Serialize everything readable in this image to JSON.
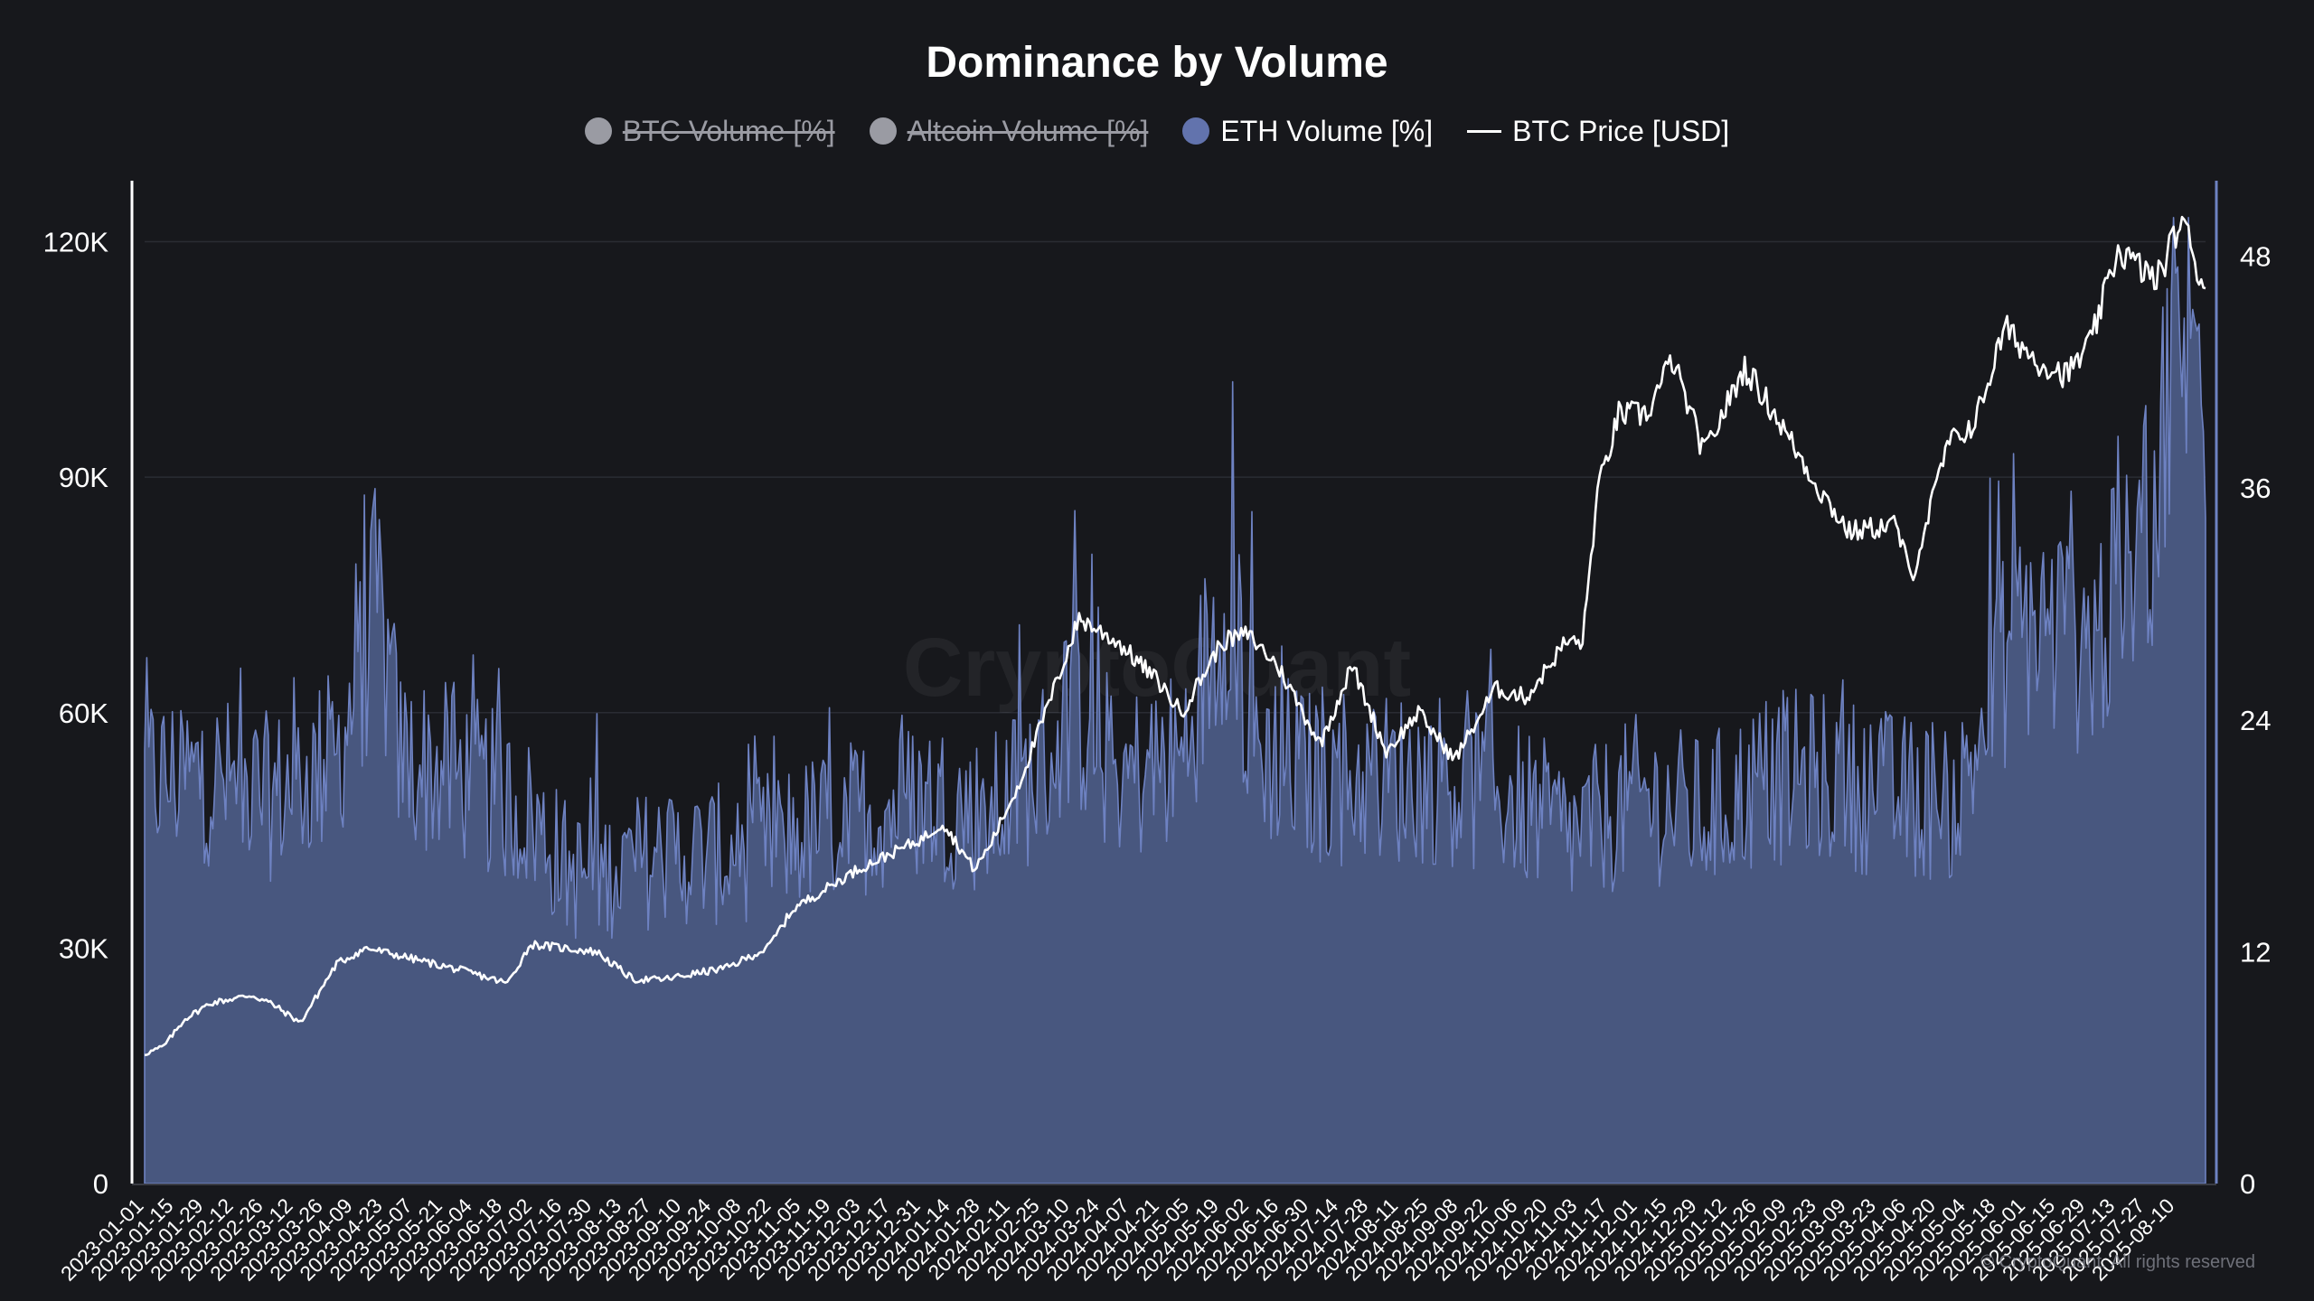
{
  "chart_data": {
    "type": "area",
    "title": "Dominance by Volume",
    "legend": [
      {
        "name": "BTC Volume [%]",
        "color": "#9a9ba3",
        "hidden": true,
        "marker": "dot"
      },
      {
        "name": "Altcoin Volume [%]",
        "color": "#9a9ba3",
        "hidden": true,
        "marker": "dot"
      },
      {
        "name": "ETH Volume [%]",
        "color": "#6273ad",
        "hidden": false,
        "marker": "dot"
      },
      {
        "name": "BTC Price [USD]",
        "color": "#ffffff",
        "hidden": false,
        "marker": "line"
      }
    ],
    "x_start": "2023-01-01",
    "x_end": "2025-08-24",
    "x_tick_labels": [
      "2023-01-01",
      "2023-01-15",
      "2023-01-29",
      "2023-02-12",
      "2023-02-26",
      "2023-03-12",
      "2023-03-26",
      "2023-04-09",
      "2023-04-23",
      "2023-05-07",
      "2023-05-21",
      "2023-06-04",
      "2023-06-18",
      "2023-07-02",
      "2023-07-16",
      "2023-07-30",
      "2023-08-13",
      "2023-08-27",
      "2023-09-10",
      "2023-09-24",
      "2023-10-08",
      "2023-10-22",
      "2023-11-05",
      "2023-11-19",
      "2023-12-03",
      "2023-12-17",
      "2023-12-31",
      "2024-01-14",
      "2024-01-28",
      "2024-02-11",
      "2024-02-25",
      "2024-03-10",
      "2024-03-24",
      "2024-04-07",
      "2024-04-21",
      "2024-05-05",
      "2024-05-19",
      "2024-06-02",
      "2024-06-16",
      "2024-06-30",
      "2024-07-14",
      "2024-07-28",
      "2024-08-11",
      "2024-08-25",
      "2024-09-08",
      "2024-09-22",
      "2024-10-06",
      "2024-10-20",
      "2024-11-03",
      "2024-11-17",
      "2024-12-01",
      "2024-12-15",
      "2024-12-29",
      "2025-01-12",
      "2025-01-26",
      "2025-02-09",
      "2025-02-23",
      "2025-03-09",
      "2025-03-23",
      "2025-04-06",
      "2025-04-20",
      "2025-05-04",
      "2025-05-18",
      "2025-06-01",
      "2025-06-15",
      "2025-06-29",
      "2025-07-13",
      "2025-07-27",
      "2025-08-10"
    ],
    "y_left": {
      "ticks": [
        "0",
        "30K",
        "60K",
        "90K",
        "120K"
      ],
      "values": [
        0,
        30000,
        60000,
        90000,
        120000
      ],
      "range": [
        0,
        128000
      ]
    },
    "y_right": {
      "ticks": [
        "0",
        "12",
        "24",
        "36",
        "48"
      ],
      "values": [
        0,
        12,
        24,
        36,
        48
      ],
      "range": [
        0,
        52
      ]
    },
    "grid": true,
    "eth_volume_pct": {
      "dates": [
        "2023-01-01",
        "2023-02-01",
        "2023-03-01",
        "2023-04-01",
        "2023-04-20",
        "2023-05-01",
        "2023-06-01",
        "2023-07-01",
        "2023-07-20",
        "2023-08-01",
        "2023-09-01",
        "2023-10-01",
        "2023-11-01",
        "2023-12-01",
        "2024-01-01",
        "2024-02-01",
        "2024-03-01",
        "2024-03-10",
        "2024-04-01",
        "2024-05-01",
        "2024-05-25",
        "2024-06-01",
        "2024-07-01",
        "2024-08-01",
        "2024-09-01",
        "2024-10-01",
        "2024-11-01",
        "2024-12-01",
        "2025-01-01",
        "2025-02-01",
        "2025-03-01",
        "2025-04-01",
        "2025-05-01",
        "2025-05-20",
        "2025-06-01",
        "2025-07-01",
        "2025-07-20",
        "2025-08-01",
        "2025-08-10",
        "2025-08-22"
      ],
      "values": [
        21,
        21,
        20,
        22,
        30,
        22,
        21,
        19,
        16,
        16,
        17,
        17,
        18,
        19,
        20,
        19,
        22,
        25,
        21,
        22,
        32,
        23,
        21,
        21,
        21,
        20,
        18,
        20,
        19,
        21,
        21,
        20,
        20,
        27,
        29,
        28,
        31,
        36,
        44,
        42
      ]
    },
    "btc_price_usd": {
      "dates": [
        "2023-01-01",
        "2023-01-10",
        "2023-01-20",
        "2023-02-01",
        "2023-02-20",
        "2023-03-01",
        "2023-03-15",
        "2023-04-01",
        "2023-04-15",
        "2023-05-01",
        "2023-06-01",
        "2023-06-20",
        "2023-07-01",
        "2023-08-01",
        "2023-08-18",
        "2023-09-01",
        "2023-10-01",
        "2023-10-20",
        "2023-11-01",
        "2023-12-01",
        "2024-01-01",
        "2024-01-10",
        "2024-01-25",
        "2024-02-01",
        "2024-02-15",
        "2024-03-01",
        "2024-03-14",
        "2024-04-01",
        "2024-04-20",
        "2024-05-01",
        "2024-05-20",
        "2024-06-01",
        "2024-06-15",
        "2024-07-05",
        "2024-07-20",
        "2024-08-05",
        "2024-08-20",
        "2024-09-06",
        "2024-09-25",
        "2024-10-10",
        "2024-10-28",
        "2024-11-05",
        "2024-11-12",
        "2024-11-22",
        "2024-12-05",
        "2024-12-17",
        "2025-01-01",
        "2025-01-20",
        "2025-02-01",
        "2025-02-25",
        "2025-03-10",
        "2025-04-01",
        "2025-04-08",
        "2025-04-25",
        "2025-05-08",
        "2025-05-22",
        "2025-06-05",
        "2025-06-20",
        "2025-07-01",
        "2025-07-14",
        "2025-08-01",
        "2025-08-13",
        "2025-08-22"
      ],
      "values": [
        16500,
        17500,
        21000,
        23000,
        24000,
        23000,
        20500,
        28000,
        30000,
        29000,
        27000,
        25500,
        30500,
        29500,
        26000,
        26000,
        27500,
        30000,
        35000,
        40000,
        44000,
        46000,
        40000,
        43000,
        51000,
        62000,
        72000,
        69000,
        64000,
        60000,
        69000,
        70000,
        66000,
        56000,
        66000,
        55000,
        60000,
        54000,
        63000,
        62000,
        69000,
        69000,
        88000,
        98000,
        98000,
        105000,
        93000,
        104000,
        99000,
        88000,
        83000,
        84000,
        77000,
        94000,
        97000,
        109000,
        105000,
        103000,
        107000,
        119000,
        115000,
        123000,
        115000
      ]
    }
  },
  "watermark": "CryptoQuant",
  "copyright": "© CryptoQuant. All rights reserved"
}
